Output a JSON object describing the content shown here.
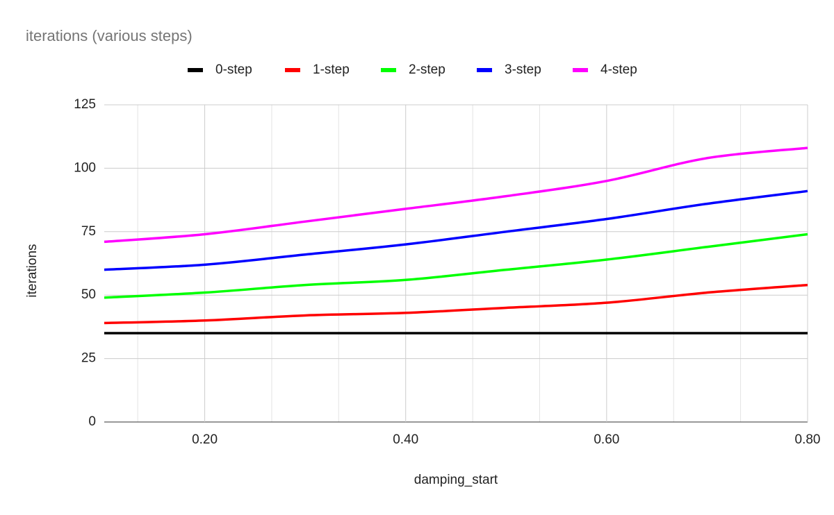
{
  "chart_data": {
    "type": "line",
    "title": "iterations (various steps)",
    "x_label": "damping_start",
    "y_label": "iterations",
    "x": [
      0.1,
      0.2,
      0.3,
      0.4,
      0.5,
      0.6,
      0.7,
      0.8
    ],
    "series": [
      {
        "name": "0-step",
        "color": "#000000",
        "values": [
          35,
          35,
          35,
          35,
          35,
          35,
          35,
          35
        ]
      },
      {
        "name": "1-step",
        "color": "#ff0000",
        "values": [
          39,
          40,
          42,
          43,
          45,
          47,
          51,
          54
        ]
      },
      {
        "name": "2-step",
        "color": "#00ff00",
        "values": [
          49,
          51,
          54,
          56,
          60,
          64,
          69,
          74
        ]
      },
      {
        "name": "3-step",
        "color": "#0000ff",
        "values": [
          60,
          62,
          66,
          70,
          75,
          80,
          86,
          91
        ]
      },
      {
        "name": "4-step",
        "color": "#ff00ff",
        "values": [
          71,
          74,
          79,
          84,
          89,
          95,
          104,
          108
        ]
      }
    ],
    "xlim": [
      0.1,
      0.8
    ],
    "xticks": [
      {
        "value": 0.2,
        "label": "0.20"
      },
      {
        "value": 0.4,
        "label": "0.40"
      },
      {
        "value": 0.6,
        "label": "0.60"
      },
      {
        "value": 0.8,
        "label": "0.80"
      }
    ],
    "xminorticks": [
      0.1333,
      0.2667,
      0.3333,
      0.4667,
      0.5333,
      0.6667,
      0.7333
    ],
    "ylim": [
      0,
      125
    ],
    "yticks": [
      0,
      25,
      50,
      75,
      100,
      125
    ],
    "grid": true,
    "legend": "top"
  }
}
